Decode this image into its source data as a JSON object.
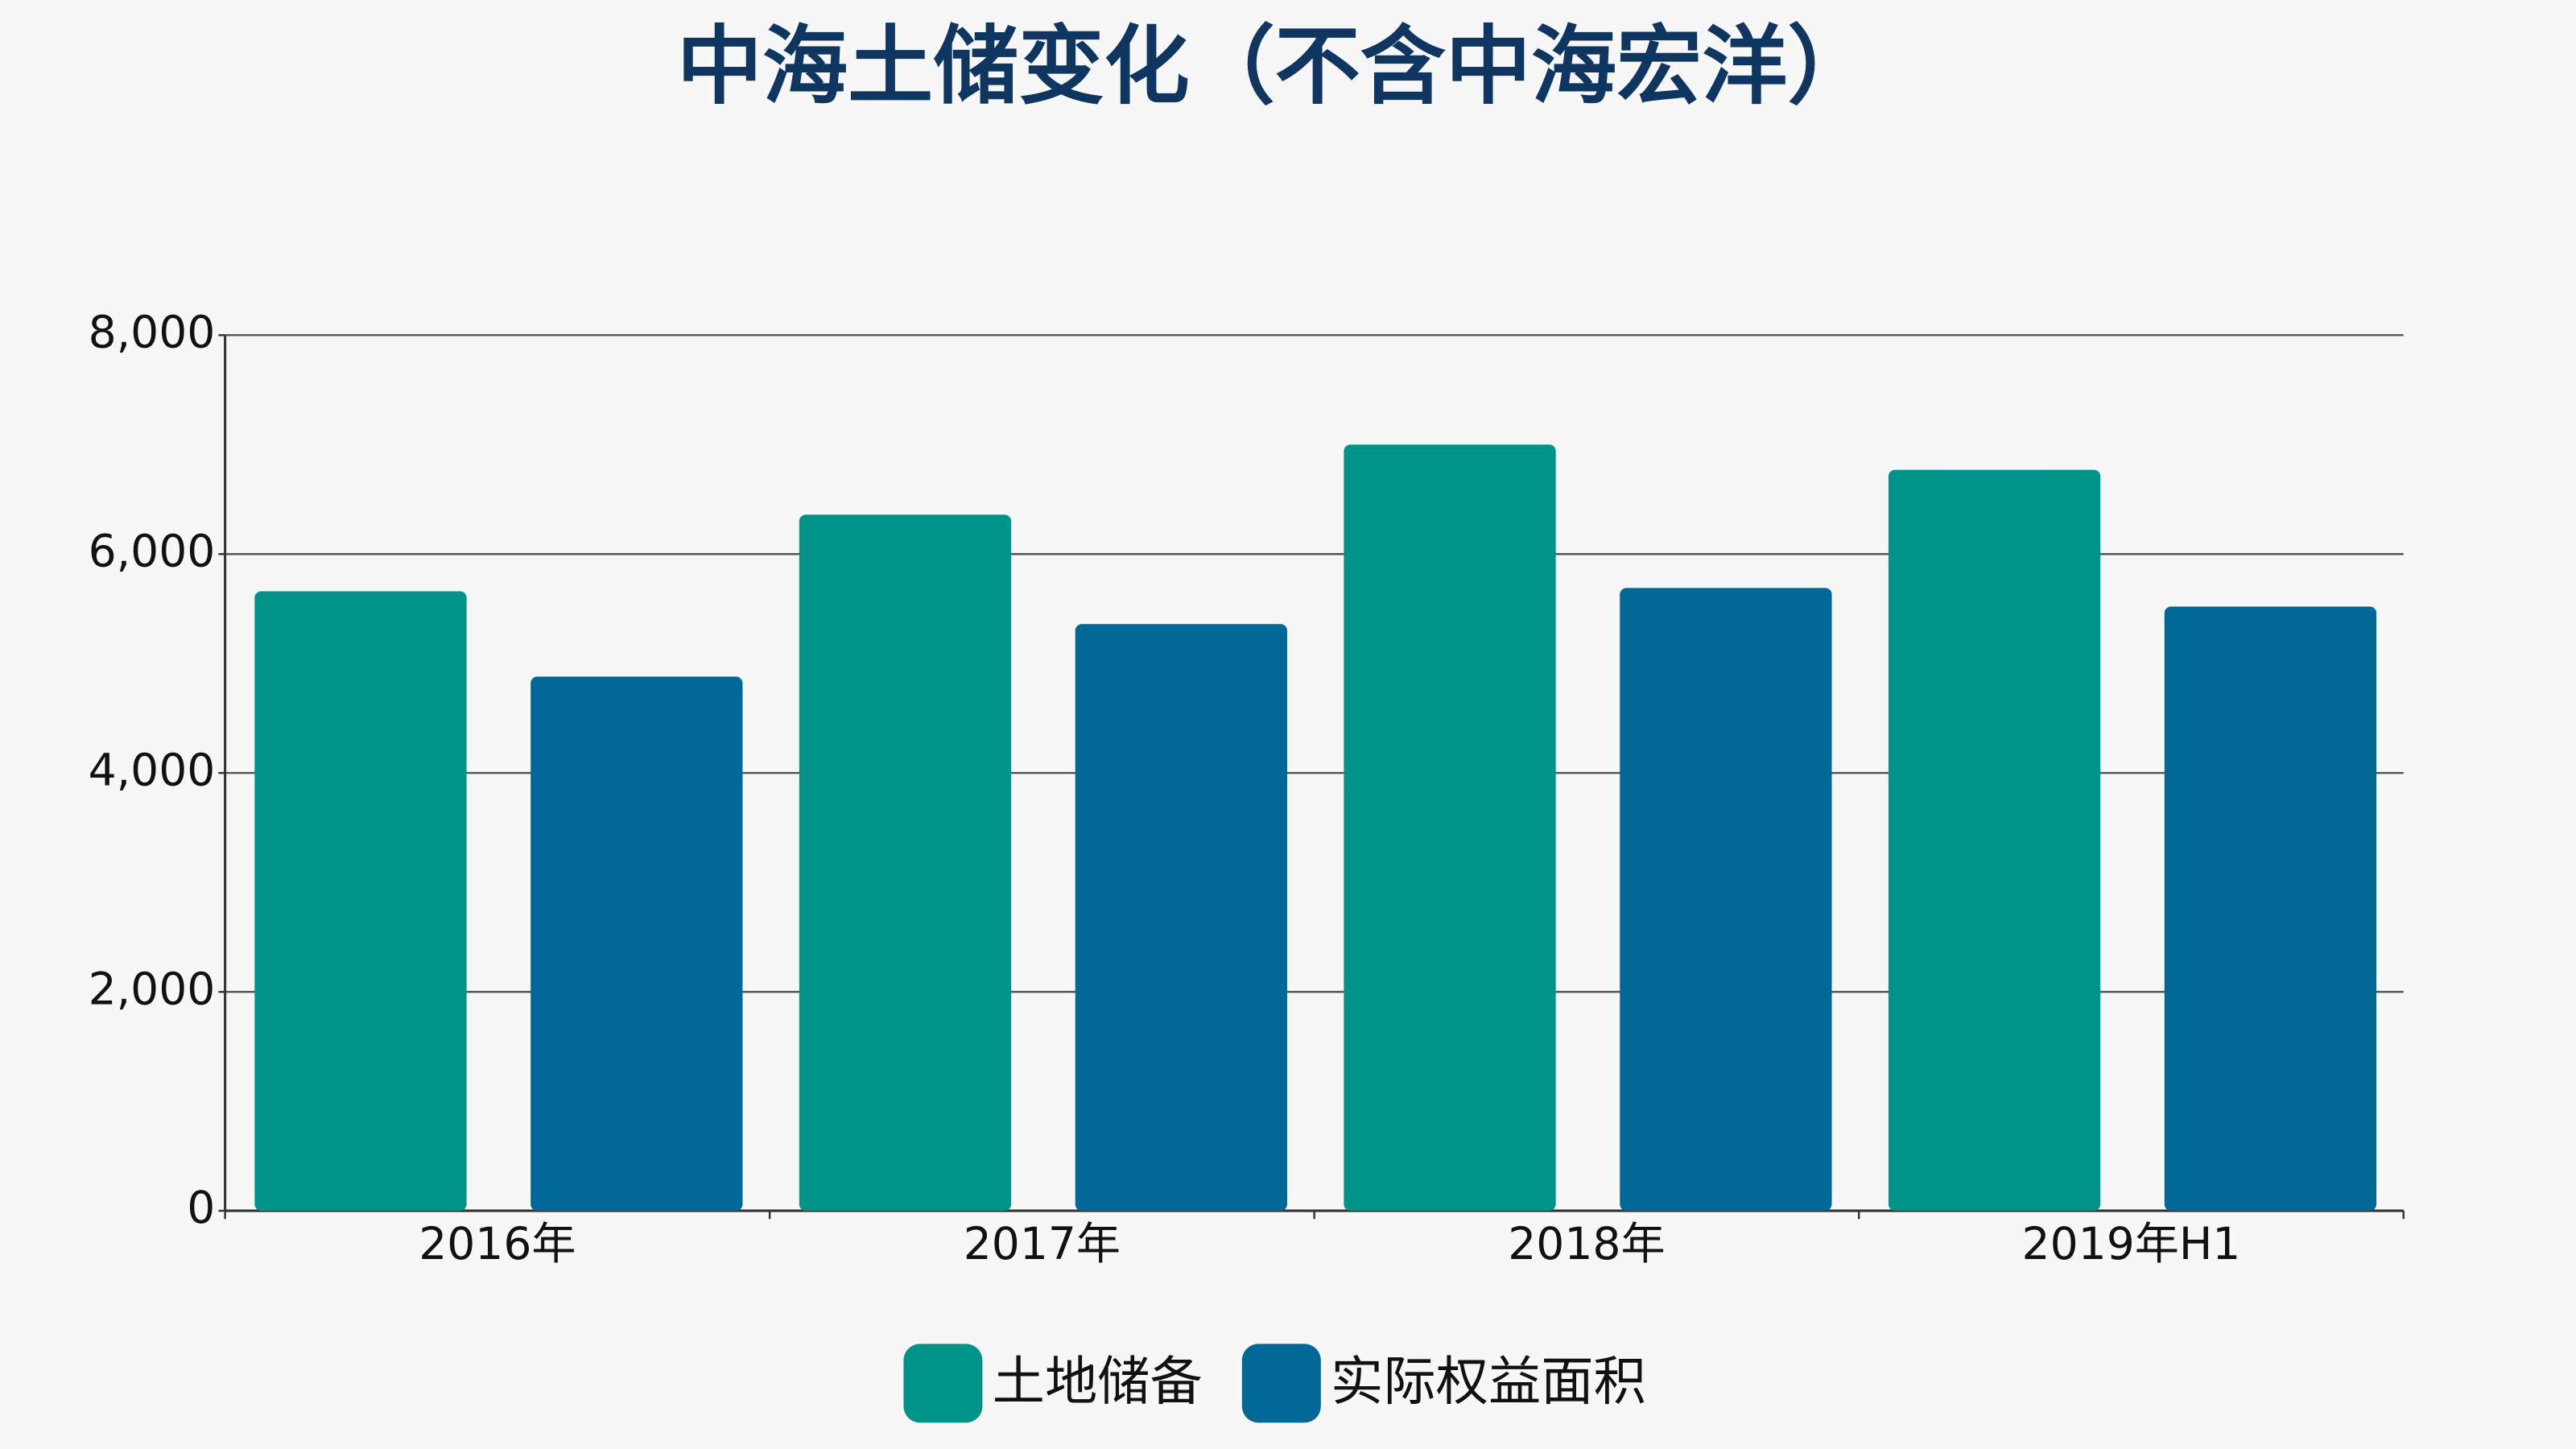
{
  "chart_data": {
    "type": "bar",
    "title": "中海土储变化（不含中海宏洋）",
    "categories": [
      "2016年",
      "2017年",
      "2018年",
      "2019年H1"
    ],
    "series": [
      {
        "name": "土地储备",
        "color": "#00938a",
        "values": [
          5660,
          6360,
          7000,
          6770
        ]
      },
      {
        "name": "实际权益面积",
        "color": "#006896",
        "values": [
          4880,
          5360,
          5690,
          5520
        ]
      }
    ],
    "ylim": [
      0,
      8000
    ],
    "yticks": [
      0,
      {
        "value": 2000,
        "label": "2,000"
      },
      {
        "value": 4000,
        "label": "4,000"
      },
      {
        "value": 6000,
        "label": "6,000"
      },
      {
        "value": 8000,
        "label": "8,000"
      }
    ],
    "grid": true,
    "legend": "bottom"
  }
}
